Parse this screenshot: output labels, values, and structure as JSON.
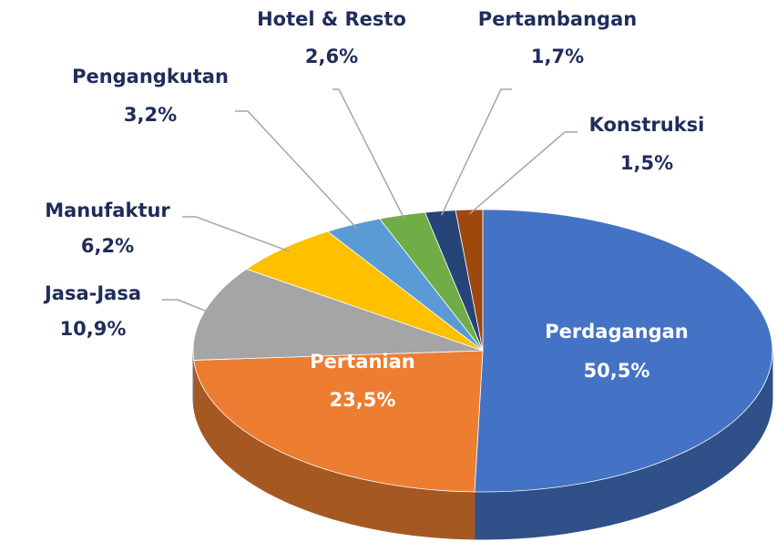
{
  "chart_data": {
    "type": "pie",
    "categories": [
      "Perdagangan",
      "Pertanian",
      "Jasa-Jasa",
      "Manufaktur",
      "Pengangkutan",
      "Hotel & Resto",
      "Pertambangan",
      "Konstruksi"
    ],
    "values": [
      50.5,
      23.5,
      10.9,
      6.2,
      3.2,
      2.6,
      1.7,
      1.5
    ],
    "value_labels": [
      "50,5%",
      "23,5%",
      "10,9%",
      "6,2%",
      "3,2%",
      "2,6%",
      "1,7%",
      "1,5%"
    ],
    "colors": [
      "#4472c4",
      "#ed7d31",
      "#a5a5a5",
      "#ffc000",
      "#5b9bd5",
      "#70ad47",
      "#264478",
      "#9e480e"
    ]
  }
}
